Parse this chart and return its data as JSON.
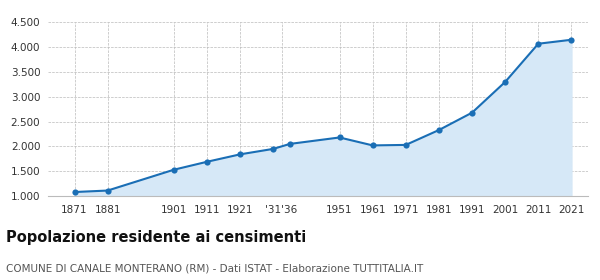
{
  "years": [
    1871,
    1881,
    1901,
    1911,
    1921,
    1931,
    1936,
    1951,
    1961,
    1971,
    1981,
    1991,
    2001,
    2011,
    2021
  ],
  "population": [
    1080,
    1110,
    1530,
    1690,
    1840,
    1950,
    2050,
    2180,
    2020,
    2030,
    2330,
    2680,
    3300,
    4070,
    4150
  ],
  "x_tick_labels": [
    "1871",
    "1881",
    "1901",
    "1911",
    "1921",
    "'31'36",
    "1951",
    "1961",
    "1971",
    "1981",
    "1991",
    "2001",
    "2011",
    "2021"
  ],
  "x_tick_positions": [
    1871,
    1881,
    1901,
    1911,
    1921,
    1933.5,
    1951,
    1961,
    1971,
    1981,
    1991,
    2001,
    2011,
    2021
  ],
  "ylim": [
    1000,
    4500
  ],
  "yticks": [
    1000,
    1500,
    2000,
    2500,
    3000,
    3500,
    4000,
    4500
  ],
  "line_color": "#1a6eb5",
  "fill_color": "#d6e8f7",
  "marker_color": "#1a6eb5",
  "grid_color": "#cccccc",
  "background_color": "#ffffff",
  "title": "Popolazione residente ai censimenti",
  "title_fontsize": 10.5,
  "subtitle": "COMUNE DI CANALE MONTERANO (RM) - Dati ISTAT - Elaborazione TUTTITALIA.IT",
  "subtitle_fontsize": 7.5
}
